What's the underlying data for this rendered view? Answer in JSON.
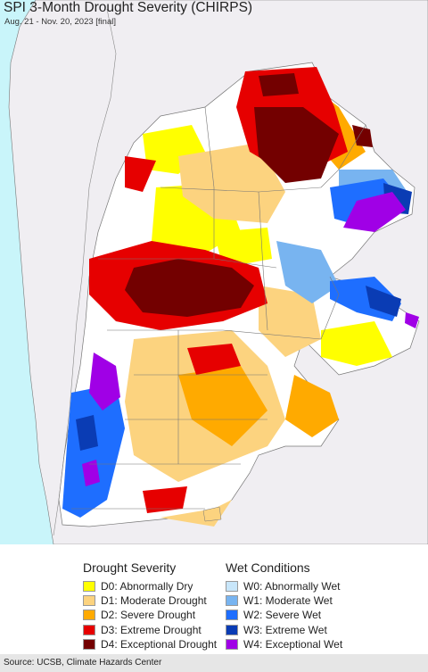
{
  "title": "SPI 3-Month Drought Severity (CHIRPS)",
  "subtitle": "Aug. 21 - Nov. 20, 2023 [final]",
  "legend": {
    "drought_title": "Drought Severity",
    "wet_title": "Wet Conditions",
    "drought": [
      {
        "label": "D0: Abnormally Dry",
        "color": "#ffff00"
      },
      {
        "label": "D1: Moderate Drought",
        "color": "#fcd37f"
      },
      {
        "label": "D2: Severe Drought",
        "color": "#ffaa00"
      },
      {
        "label": "D3: Extreme Drought",
        "color": "#e60000"
      },
      {
        "label": "D4: Exceptional Drought",
        "color": "#730000"
      }
    ],
    "wet": [
      {
        "label": "W0: Abnormally Wet",
        "color": "#c8e6fa"
      },
      {
        "label": "W1: Moderate Wet",
        "color": "#78b4f0"
      },
      {
        "label": "W2: Severe Wet",
        "color": "#1e6eff"
      },
      {
        "label": "W3: Extreme Wet",
        "color": "#0a3cb4"
      },
      {
        "label": "W4: Exceptional Wet",
        "color": "#a000e6"
      }
    ]
  },
  "map_colors": {
    "ocean": "#c9f5fa",
    "land_other": "#f0eef2",
    "no_drought": "#ffffff",
    "border": "#777777"
  },
  "source": "Source: UCSB, Climate Hazards Center"
}
